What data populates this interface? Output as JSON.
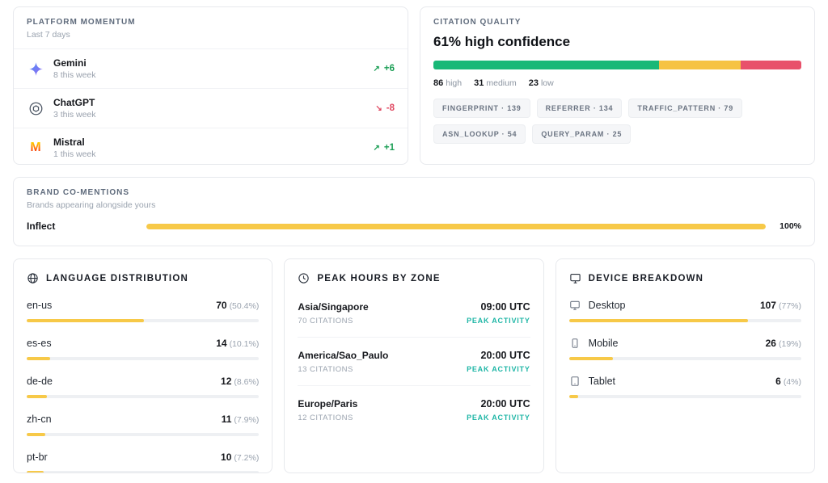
{
  "platform_momentum": {
    "title": "PLATFORM MOMENTUM",
    "subtitle": "Last 7 days",
    "items": [
      {
        "icon": "gemini",
        "name": "Gemini",
        "meta": "8 this week",
        "arrow": "↗",
        "delta": "+6",
        "direction": "up"
      },
      {
        "icon": "chatgpt",
        "name": "ChatGPT",
        "meta": "3 this week",
        "arrow": "↘",
        "delta": "-8",
        "direction": "down"
      },
      {
        "icon": "mistral",
        "name": "Mistral",
        "meta": "1 this week",
        "arrow": "↗",
        "delta": "+1",
        "direction": "up"
      }
    ]
  },
  "citation_quality": {
    "title": "CITATION QUALITY",
    "headline": "61% high confidence",
    "segments": [
      {
        "label": "high",
        "count": "86",
        "pct": 61.4,
        "color": "#18b877"
      },
      {
        "label": "medium",
        "count": "31",
        "pct": 22.2,
        "color": "#f6c343"
      },
      {
        "label": "low",
        "count": "23",
        "pct": 16.4,
        "color": "#e8516b"
      }
    ],
    "tags": [
      "FINGERPRINT · 139",
      "REFERRER · 134",
      "TRAFFIC_PATTERN · 79",
      "ASN_LOOKUP · 54",
      "QUERY_PARAM · 25"
    ]
  },
  "brand_comentions": {
    "title": "BRAND CO-MENTIONS",
    "subtitle": "Brands appearing alongside yours",
    "rows": [
      {
        "name": "Inflect",
        "pct": 100,
        "pct_label": "100%"
      }
    ]
  },
  "language_distribution": {
    "title": "LANGUAGE DISTRIBUTION",
    "icon": "globe-icon",
    "rows": [
      {
        "code": "en-us",
        "count": "70",
        "share": "(50.4%)",
        "pct": 50.4
      },
      {
        "code": "es-es",
        "count": "14",
        "share": "(10.1%)",
        "pct": 10.1
      },
      {
        "code": "de-de",
        "count": "12",
        "share": "(8.6%)",
        "pct": 8.6
      },
      {
        "code": "zh-cn",
        "count": "11",
        "share": "(7.9%)",
        "pct": 7.9
      },
      {
        "code": "pt-br",
        "count": "10",
        "share": "(7.2%)",
        "pct": 7.2
      }
    ]
  },
  "peak_hours": {
    "title": "PEAK HOURS BY ZONE",
    "icon": "clock-icon",
    "rows": [
      {
        "zone": "Asia/Singapore",
        "citations": "70 CITATIONS",
        "time": "09:00 UTC",
        "status": "PEAK ACTIVITY"
      },
      {
        "zone": "America/Sao_Paulo",
        "citations": "13 CITATIONS",
        "time": "20:00 UTC",
        "status": "PEAK ACTIVITY"
      },
      {
        "zone": "Europe/Paris",
        "citations": "12 CITATIONS",
        "time": "20:00 UTC",
        "status": "PEAK ACTIVITY"
      }
    ]
  },
  "device_breakdown": {
    "title": "DEVICE BREAKDOWN",
    "icon": "monitor-icon",
    "rows": [
      {
        "icon": "monitor-icon",
        "device": "Desktop",
        "count": "107",
        "share": "(77%)",
        "pct": 77
      },
      {
        "icon": "smartphone-icon",
        "device": "Mobile",
        "count": "26",
        "share": "(19%)",
        "pct": 19
      },
      {
        "icon": "tablet-icon",
        "device": "Tablet",
        "count": "6",
        "share": "(4%)",
        "pct": 4
      }
    ]
  },
  "colors": {
    "accent_yellow": "#f7c948",
    "green": "#18b877",
    "yellow": "#f6c343",
    "red": "#e8516b",
    "teal": "#1fb6a6",
    "trend_up": "#1a9e54",
    "trend_down": "#e04a62"
  }
}
